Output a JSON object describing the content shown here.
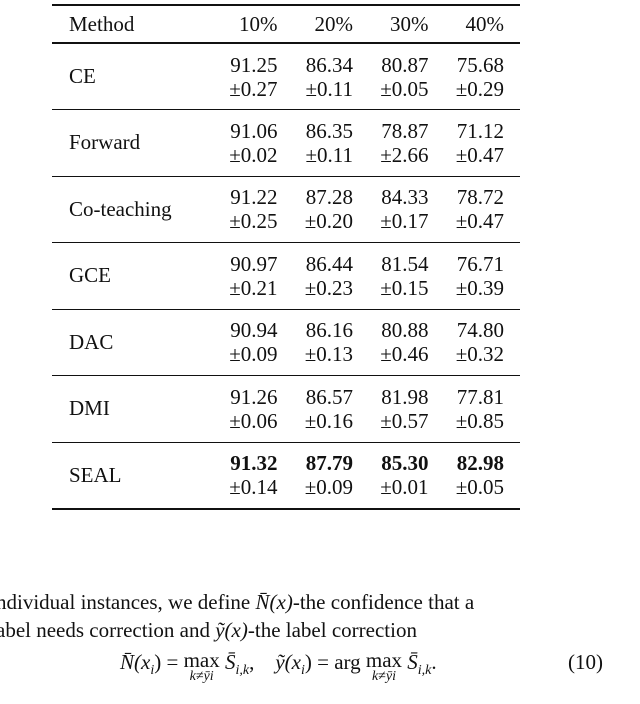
{
  "table": {
    "headers": [
      "Method",
      "10%",
      "20%",
      "30%",
      "40%"
    ],
    "rows": [
      {
        "method": "CE",
        "means": [
          "91.25",
          "86.34",
          "80.87",
          "75.68"
        ],
        "stds": [
          "±0.27",
          "±0.11",
          "±0.05",
          "±0.29"
        ],
        "bold": false
      },
      {
        "method": "Forward",
        "means": [
          "91.06",
          "86.35",
          "78.87",
          "71.12"
        ],
        "stds": [
          "±0.02",
          "±0.11",
          "±2.66",
          "±0.47"
        ],
        "bold": false
      },
      {
        "method": "Co-teaching",
        "means": [
          "91.22",
          "87.28",
          "84.33",
          "78.72"
        ],
        "stds": [
          "±0.25",
          "±0.20",
          "±0.17",
          "±0.47"
        ],
        "bold": false
      },
      {
        "method": "GCE",
        "means": [
          "90.97",
          "86.44",
          "81.54",
          "76.71"
        ],
        "stds": [
          "±0.21",
          "±0.23",
          "±0.15",
          "±0.39"
        ],
        "bold": false
      },
      {
        "method": "DAC",
        "means": [
          "90.94",
          "86.16",
          "80.88",
          "74.80"
        ],
        "stds": [
          "±0.09",
          "±0.13",
          "±0.46",
          "±0.32"
        ],
        "bold": false
      },
      {
        "method": "DMI",
        "means": [
          "91.26",
          "86.57",
          "81.98",
          "77.81"
        ],
        "stds": [
          "±0.06",
          "±0.16",
          "±0.57",
          "±0.85"
        ],
        "bold": false
      },
      {
        "method": "SEAL",
        "means": [
          "91.32",
          "87.79",
          "85.30",
          "82.98"
        ],
        "stds": [
          "±0.14",
          "±0.09",
          "±0.01",
          "±0.05"
        ],
        "bold": true
      }
    ]
  },
  "text": {
    "line1_a": "ndividual instances, we define ",
    "line1_sym": "N̄(x)",
    "line1_b": "-the confidence that a",
    "line2_a": "abel needs correction and ",
    "line2_sym": "ỹ(x)",
    "line2_b": "-the label correction"
  },
  "equation": {
    "lhs1": "N̄(x",
    "lhs1_sub": "i",
    "eq1": ") = ",
    "op1": "max",
    "op_sub": "k≠ȳi",
    "s1": " S̄",
    "s1_sub": "i,k",
    "sep": ",    ",
    "lhs2": "ỹ(x",
    "lhs2_sub": "i",
    "eq2": ") = arg ",
    "op2": "max",
    "s2": " S̄",
    "s2_sub": "i,k",
    "end": ".",
    "number": "(10)"
  }
}
